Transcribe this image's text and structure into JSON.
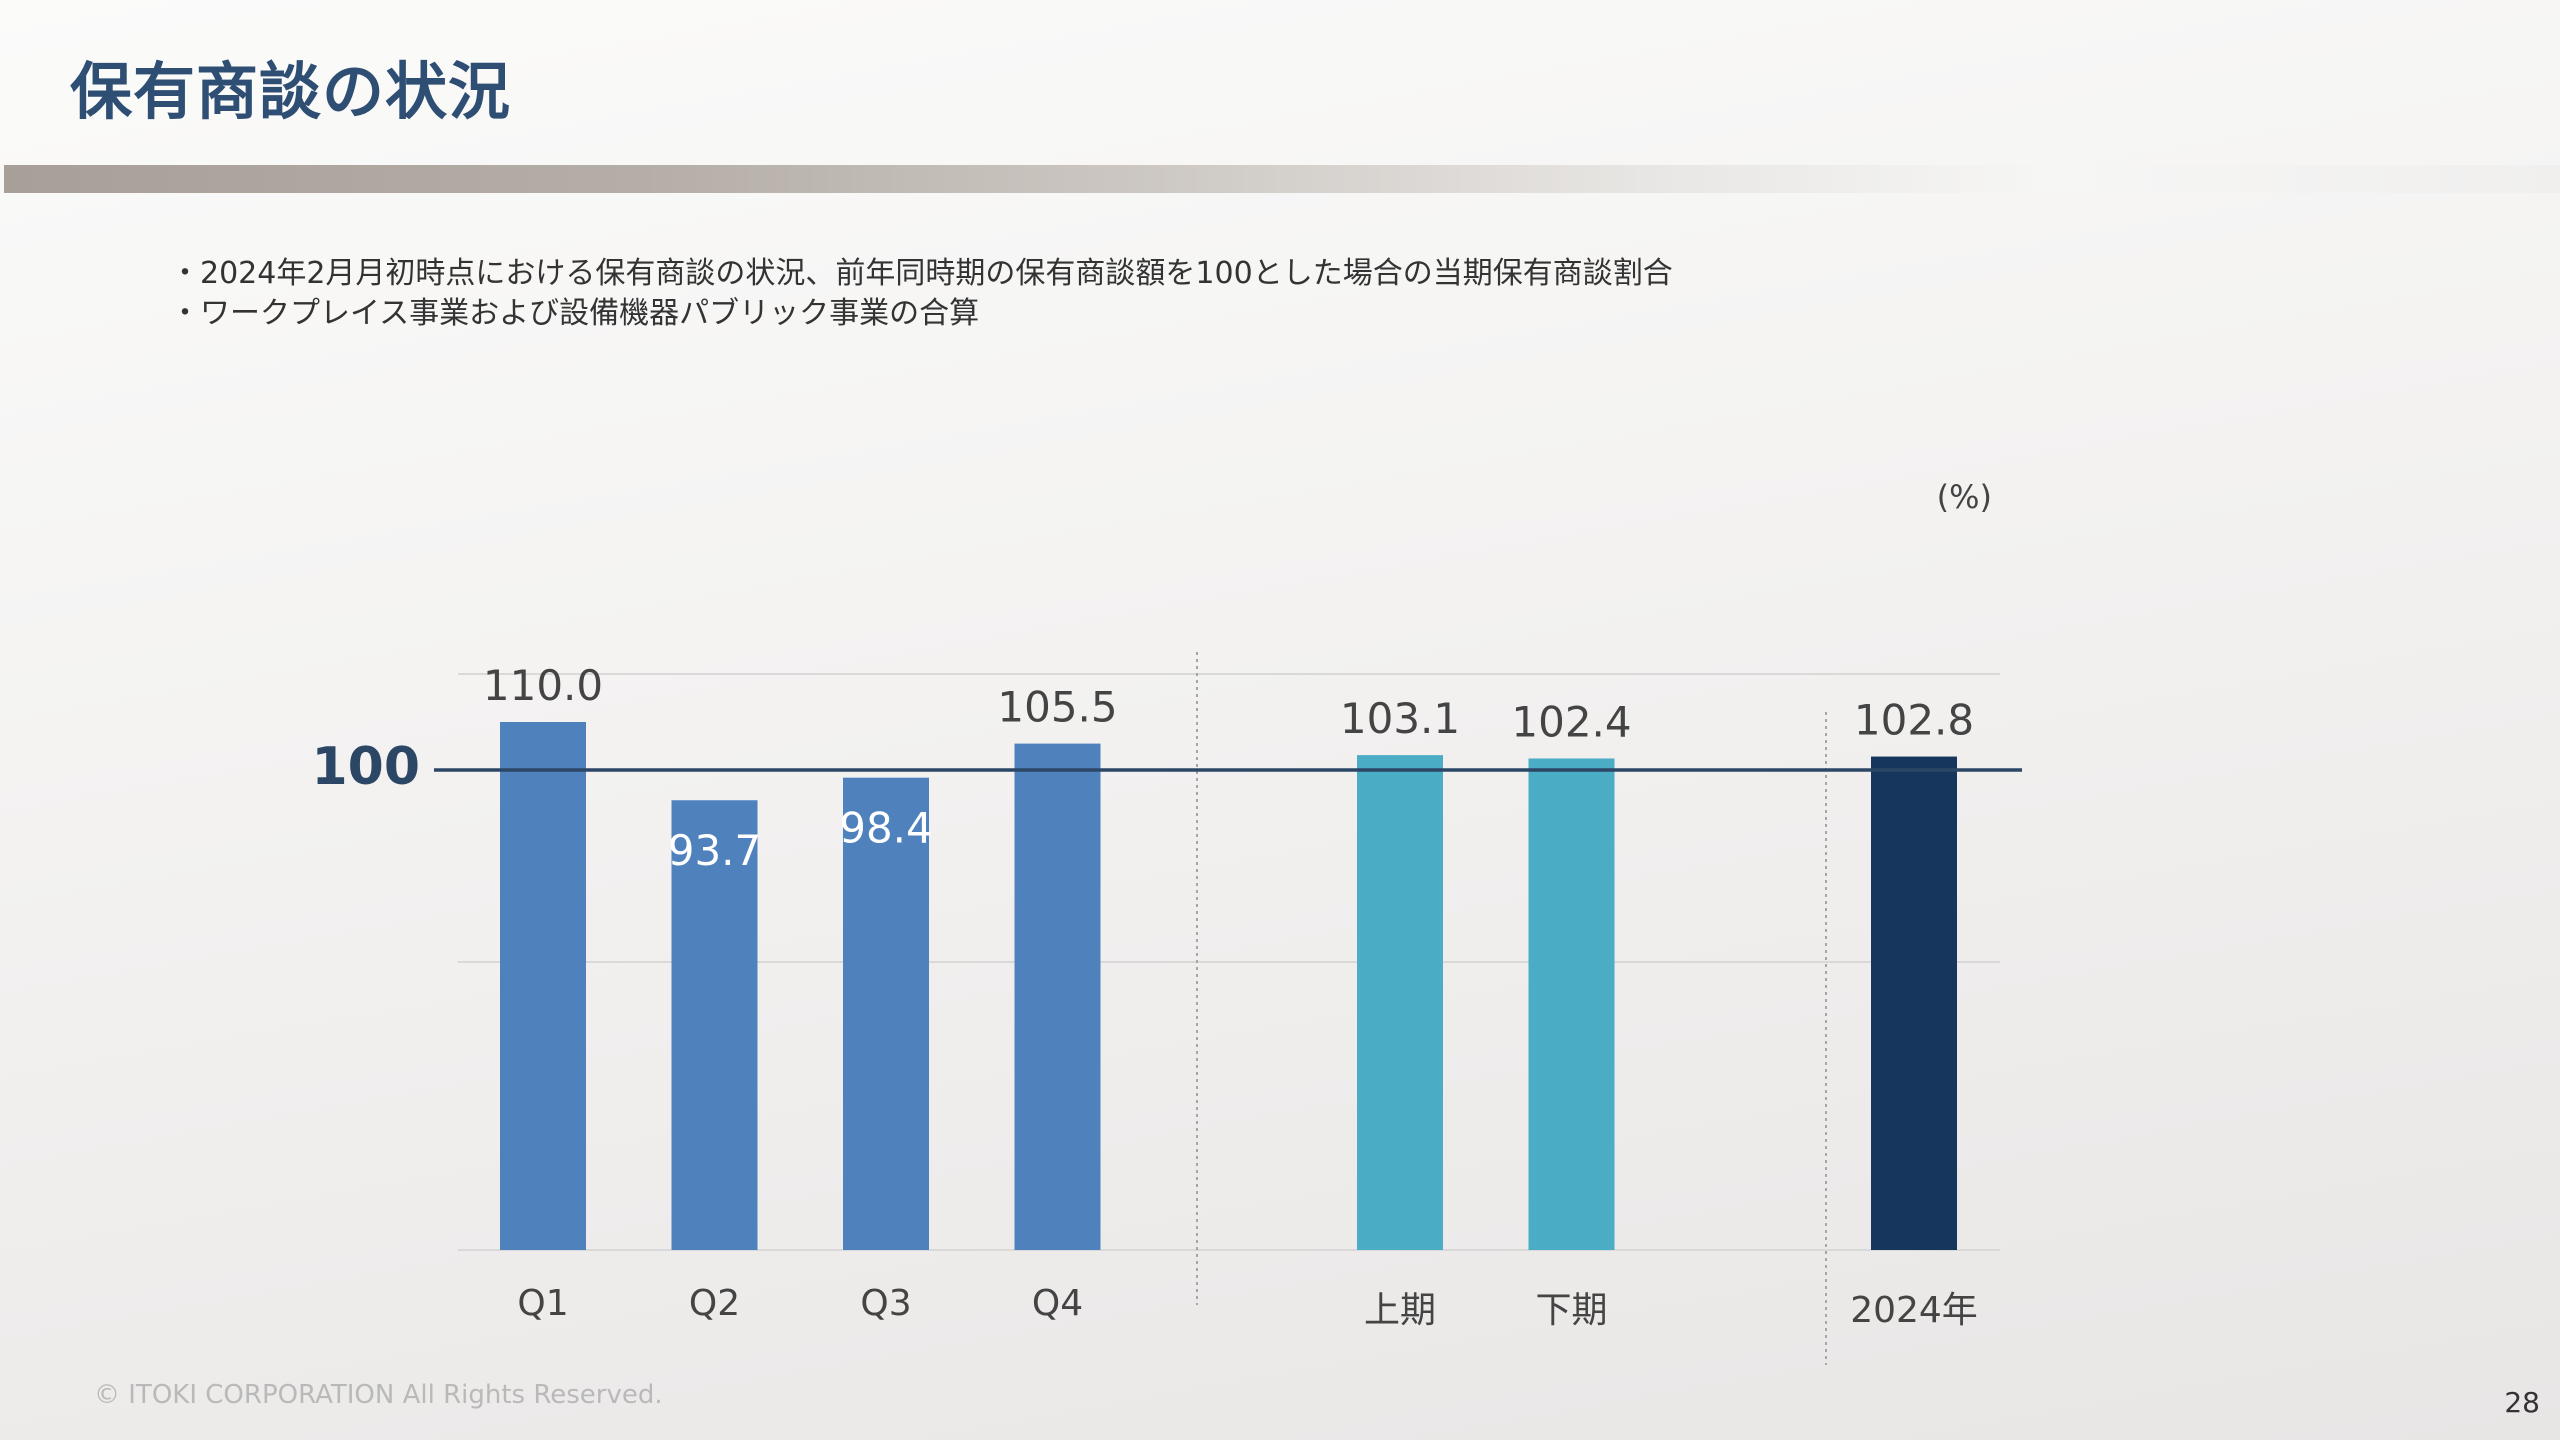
{
  "slide": {
    "title": "保有商談の状況",
    "notes": [
      "2024年2月月初時点における保有商談の状況、前年同時期の保有商談額を100とした場合の当期保有商談割合",
      "ワークプレイス事業および設備機器パブリック事業の合算"
    ],
    "footer": "© ITOKI CORPORATION All Rights Reserved.",
    "page_number": "28"
  },
  "colors": {
    "title": "#2e4e73",
    "quarter_bar": "#4f81bd",
    "half_bar": "#4bacc6",
    "year_bar": "#17365d",
    "reference_line": "#2c4766",
    "gridline": "#d9d9d9",
    "divider": "#a6a6a6"
  },
  "chart_data": {
    "type": "bar",
    "unit_label": "(%)",
    "reference_line": {
      "value": 100,
      "label": "100"
    },
    "ylim": [
      0,
      120
    ],
    "gridlines": [
      60,
      120
    ],
    "groups": [
      {
        "name": "quarters",
        "color_key": "quarter_bar",
        "categories": [
          "Q1",
          "Q2",
          "Q3",
          "Q4"
        ],
        "values": [
          110.0,
          93.7,
          98.4,
          105.5
        ],
        "value_labels": [
          "110.0",
          "93.7",
          "98.4",
          "105.5"
        ],
        "label_inside": [
          false,
          true,
          true,
          false
        ]
      },
      {
        "name": "halves",
        "color_key": "half_bar",
        "categories": [
          "上期",
          "下期"
        ],
        "values": [
          103.1,
          102.4
        ],
        "value_labels": [
          "103.1",
          "102.4"
        ],
        "label_inside": [
          false,
          false
        ]
      },
      {
        "name": "year",
        "color_key": "year_bar",
        "categories": [
          "2024年"
        ],
        "values": [
          102.8
        ],
        "value_labels": [
          "102.8"
        ],
        "label_inside": [
          false
        ]
      }
    ]
  }
}
